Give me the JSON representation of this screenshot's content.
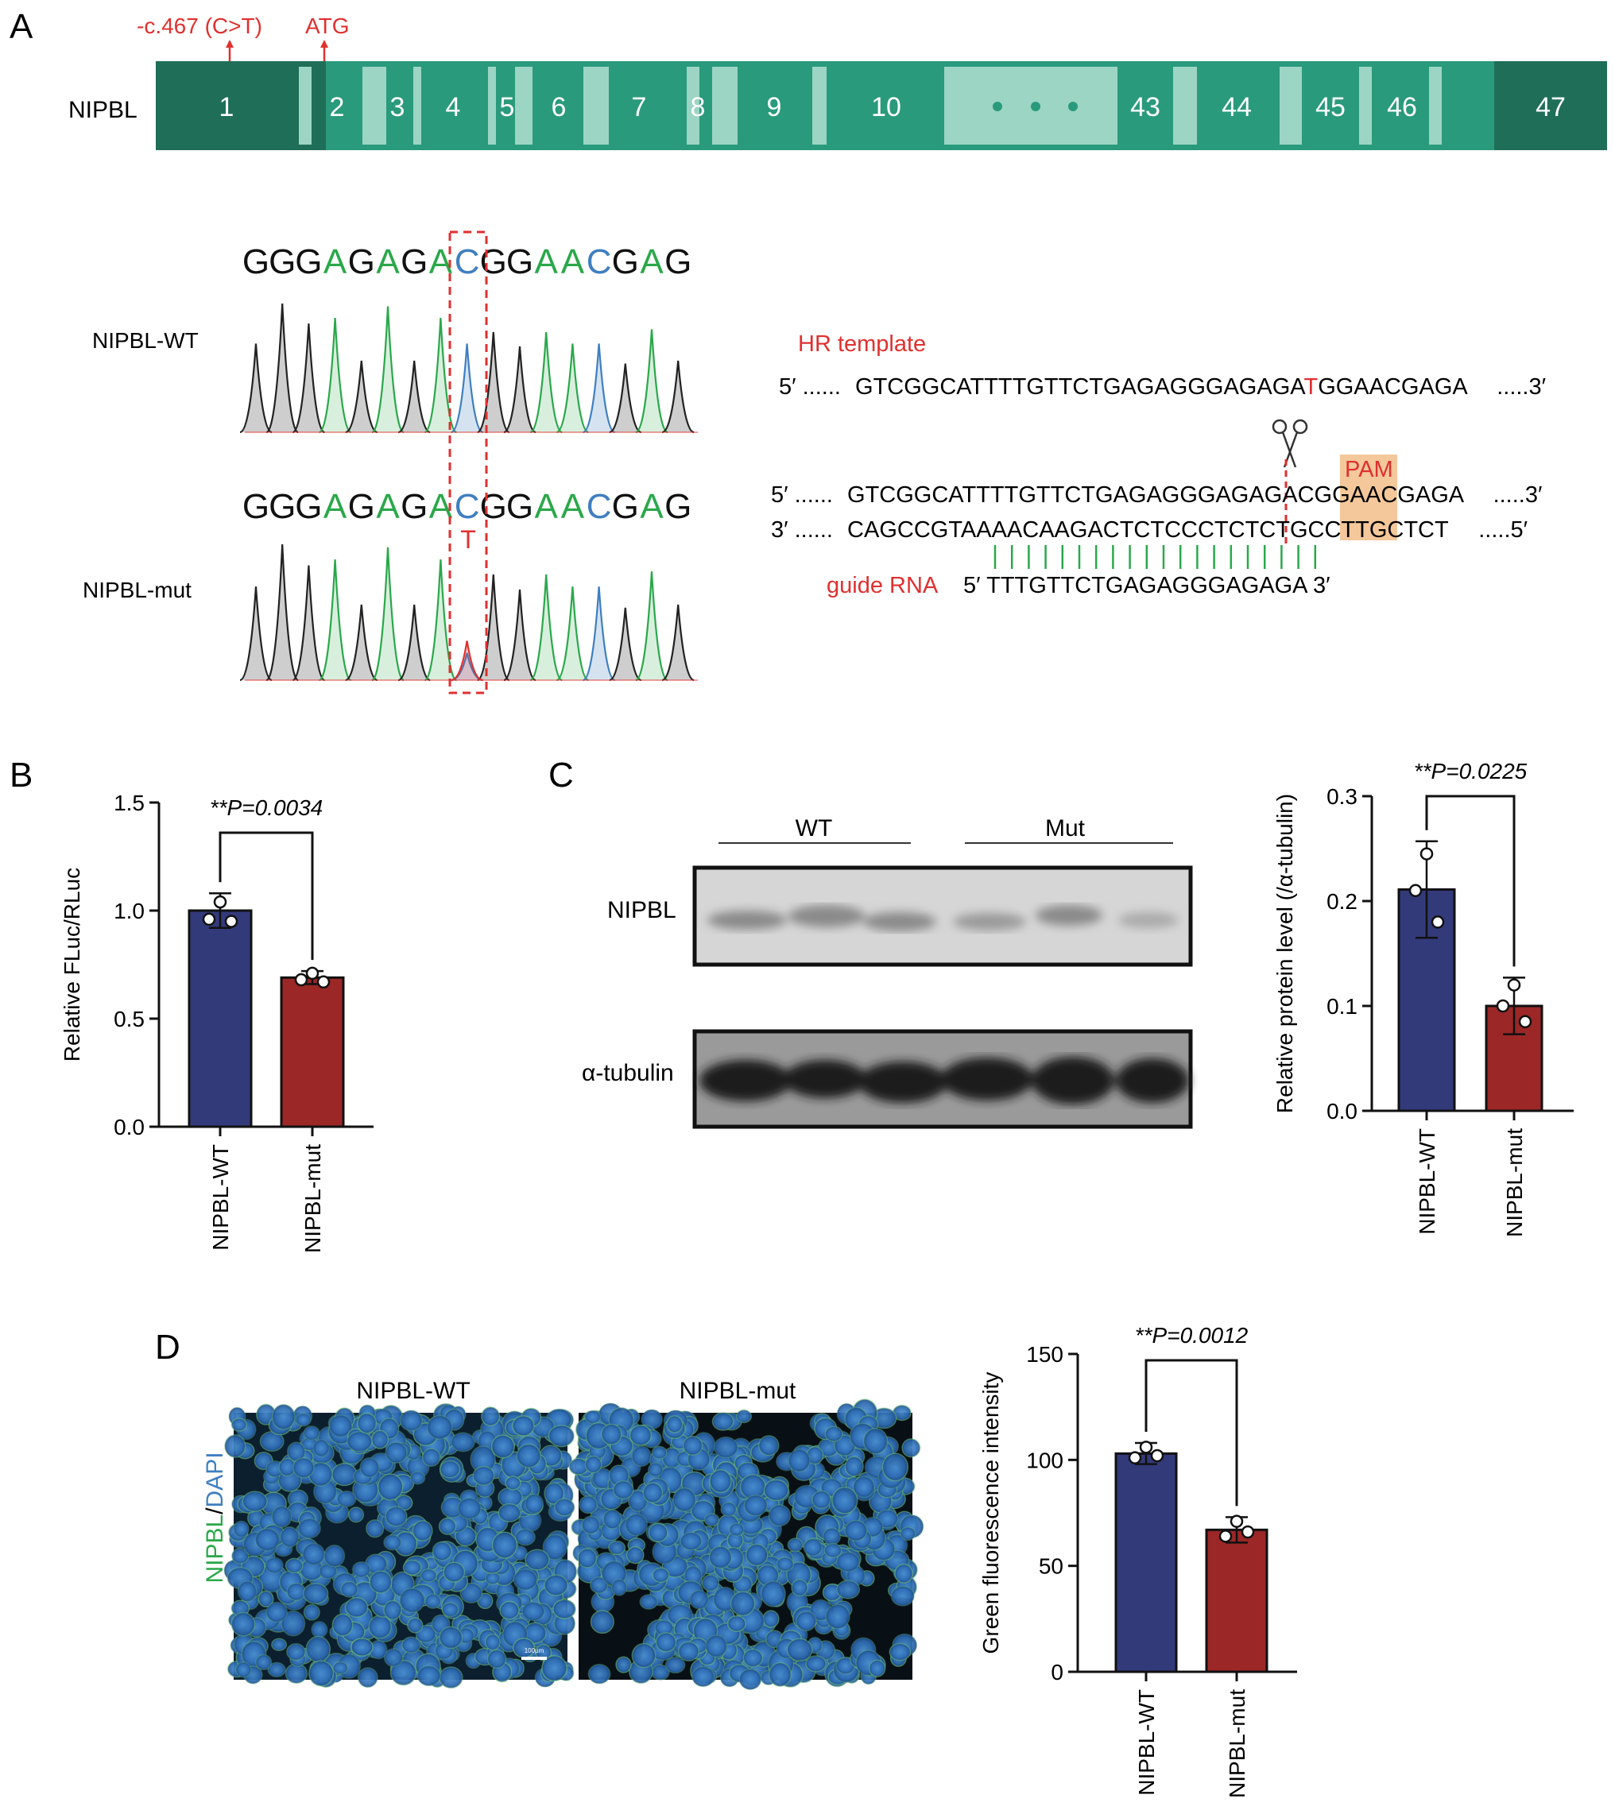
{
  "panels": {
    "A": "A",
    "B": "B",
    "C": "C",
    "D": "D"
  },
  "panelA": {
    "gene": "NIPBL",
    "variant": "-c.467 (C>T)",
    "atg": "ATG",
    "exons": [
      "1",
      "2",
      "3",
      "4",
      "5",
      "6",
      "7",
      "8",
      "9",
      "10",
      "43",
      "44",
      "45",
      "46",
      "47"
    ],
    "seq": [
      "G",
      "G",
      "G",
      "A",
      "G",
      "A",
      "G",
      "A",
      "C",
      "G",
      "G",
      "A",
      "A",
      "C",
      "G",
      "A",
      "G"
    ],
    "wt_label": "NIPBL-WT",
    "mut_label": "NIPBL-mut",
    "mut_base": "T",
    "hr_template": "HR template",
    "hr_seq_prefix": "5′ ......",
    "hr_seq_a": "GTCGGCATTTTGTTCTGAGAGGGAGAGA",
    "hr_seq_t": "T",
    "hr_seq_b": "GGAACGAGA",
    "hr_seq_suffix": ".....3′",
    "pam": "PAM",
    "top_prefix": "5′ ......",
    "top_seq_a": "GTCGGCATTTTGTTCTGAGAGGGAGAGA",
    "top_seq_pam": "CGG",
    "top_seq_b": "AACGAGA",
    "top_suffix": ".....3′",
    "bot_prefix": "3′ ......",
    "bot_seq_a": "CAGCCGTAAAACAAGACTCTCCCTCTCT",
    "bot_seq_pam": "GCC",
    "bot_seq_b": "TTGCTCT",
    "bot_suffix": ".....5′",
    "guide_label": "guide RNA",
    "guide_seq": "5′ TTTGTTCTGAGAGGGAGAGA 3′"
  },
  "western": {
    "groups": [
      "WT",
      "Mut"
    ],
    "rows": [
      "NIPBL",
      "α-tubulin"
    ]
  },
  "images": {
    "titles": [
      "NIPBL-WT",
      "NIPBL-mut"
    ],
    "stain_green": "NIPBL",
    "stain_sep": "/",
    "stain_blue": "DAPI",
    "scale": "100μm"
  },
  "colors": {
    "wt": "#333a7a",
    "mut": "#9b2727",
    "exon": "#2a9a7c",
    "exon_dark": "#1f6e58",
    "red": "#e0302f",
    "green": "#2aa84a",
    "blue": "#3f7fc0",
    "pam_bg": "#f4c89a"
  },
  "chart_data": [
    {
      "type": "bar",
      "panel": "B",
      "categories": [
        "NIPBL-WT",
        "NIPBL-mut"
      ],
      "values": [
        1.0,
        0.69
      ],
      "errors": [
        0.08,
        0.03
      ],
      "points": [
        [
          1.04,
          0.96,
          0.95
        ],
        [
          0.71,
          0.68,
          0.67
        ]
      ],
      "ylabel": "Relative FLuc/RLuc",
      "ylim": [
        0,
        1.5
      ],
      "yticks": [
        "0.0",
        "0.5",
        "1.0",
        "1.5"
      ],
      "annotation": "**P=0.0034"
    },
    {
      "type": "bar",
      "panel": "C",
      "categories": [
        "NIPBL-WT",
        "NIPBL-mut"
      ],
      "values": [
        0.211,
        0.1
      ],
      "errors": [
        0.046,
        0.027
      ],
      "points": [
        [
          0.245,
          0.21,
          0.18
        ],
        [
          0.12,
          0.1,
          0.085
        ]
      ],
      "ylabel": "Relative protein level (/α-tubulin)",
      "ylim": [
        0,
        0.3
      ],
      "yticks": [
        "0.0",
        "0.1",
        "0.2",
        "0.3"
      ],
      "annotation": "**P=0.0225"
    },
    {
      "type": "bar",
      "panel": "D",
      "categories": [
        "NIPBL-WT",
        "NIPBL-mut"
      ],
      "values": [
        103,
        67
      ],
      "errors": [
        5,
        6
      ],
      "points": [
        [
          106,
          101,
          102
        ],
        [
          71,
          64,
          66
        ]
      ],
      "ylabel": "Green fluorescence intensity",
      "ylim": [
        0,
        150
      ],
      "yticks": [
        "0",
        "50",
        "100",
        "150"
      ],
      "annotation": "**P=0.0012"
    }
  ]
}
